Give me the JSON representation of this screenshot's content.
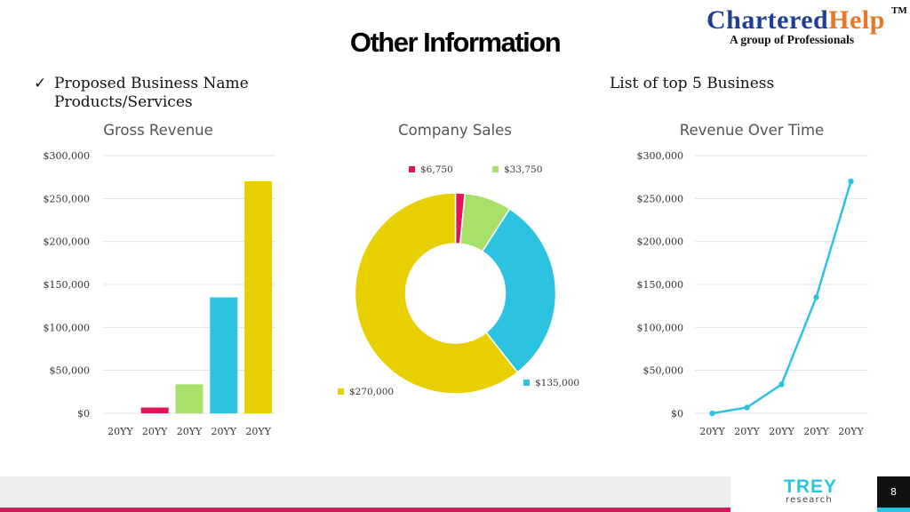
{
  "slide": {
    "title": "Other Information",
    "bullet_lines": [
      "Proposed Business Name",
      "Products/Services"
    ],
    "check_icon": "✓",
    "right_heading": "List of top 5 Business"
  },
  "logo": {
    "part1": "Chartered",
    "part2": "Help",
    "tm": "TM",
    "tagline": "A group of Professionals",
    "colors": {
      "primary": "#1f3f8f",
      "accent": "#e8762b"
    }
  },
  "footer": {
    "brand": "TREY",
    "brand_sub": "research",
    "page_number": "8",
    "colors": {
      "bar": "#eeeeee",
      "stripe": "#e0155a",
      "brand": "#2cc3e0",
      "page_box": "#111111"
    }
  },
  "chart_data": [
    {
      "type": "bar",
      "title": "Gross Revenue",
      "categories": [
        "20YY",
        "20YY",
        "20YY",
        "20YY",
        "20YY"
      ],
      "values": [
        0,
        6750,
        33750,
        135000,
        270000
      ],
      "colors": [
        "#e0155a",
        "#e0155a",
        "#a8e06a",
        "#2cc3e0",
        "#e8cf00"
      ],
      "ylim": [
        0,
        300000
      ],
      "yticks": [
        0,
        50000,
        100000,
        150000,
        200000,
        250000,
        300000
      ],
      "ytick_labels": [
        "$0",
        "$50,000",
        "$100,000",
        "$150,000",
        "$200,000",
        "$250,000",
        "$300,000"
      ],
      "grid": true
    },
    {
      "type": "pie",
      "title": "Company Sales",
      "donut": true,
      "slices": [
        {
          "label": "$6,750",
          "value": 6750,
          "color": "#e0155a"
        },
        {
          "label": "$33,750",
          "value": 33750,
          "color": "#a8e06a"
        },
        {
          "label": "$135,000",
          "value": 135000,
          "color": "#2cc3e0"
        },
        {
          "label": "$270,000",
          "value": 270000,
          "color": "#e8cf00"
        }
      ]
    },
    {
      "type": "line",
      "title": "Revenue Over Time",
      "categories": [
        "20YY",
        "20YY",
        "20YY",
        "20YY",
        "20YY"
      ],
      "values": [
        0,
        6750,
        33750,
        135000,
        270000
      ],
      "color": "#2cc3e0",
      "ylim": [
        0,
        300000
      ],
      "yticks": [
        0,
        50000,
        100000,
        150000,
        200000,
        250000,
        300000
      ],
      "ytick_labels": [
        "$0",
        "$50,000",
        "$100,000",
        "$150,000",
        "$200,000",
        "$250,000",
        "$300,000"
      ],
      "grid": true
    }
  ]
}
